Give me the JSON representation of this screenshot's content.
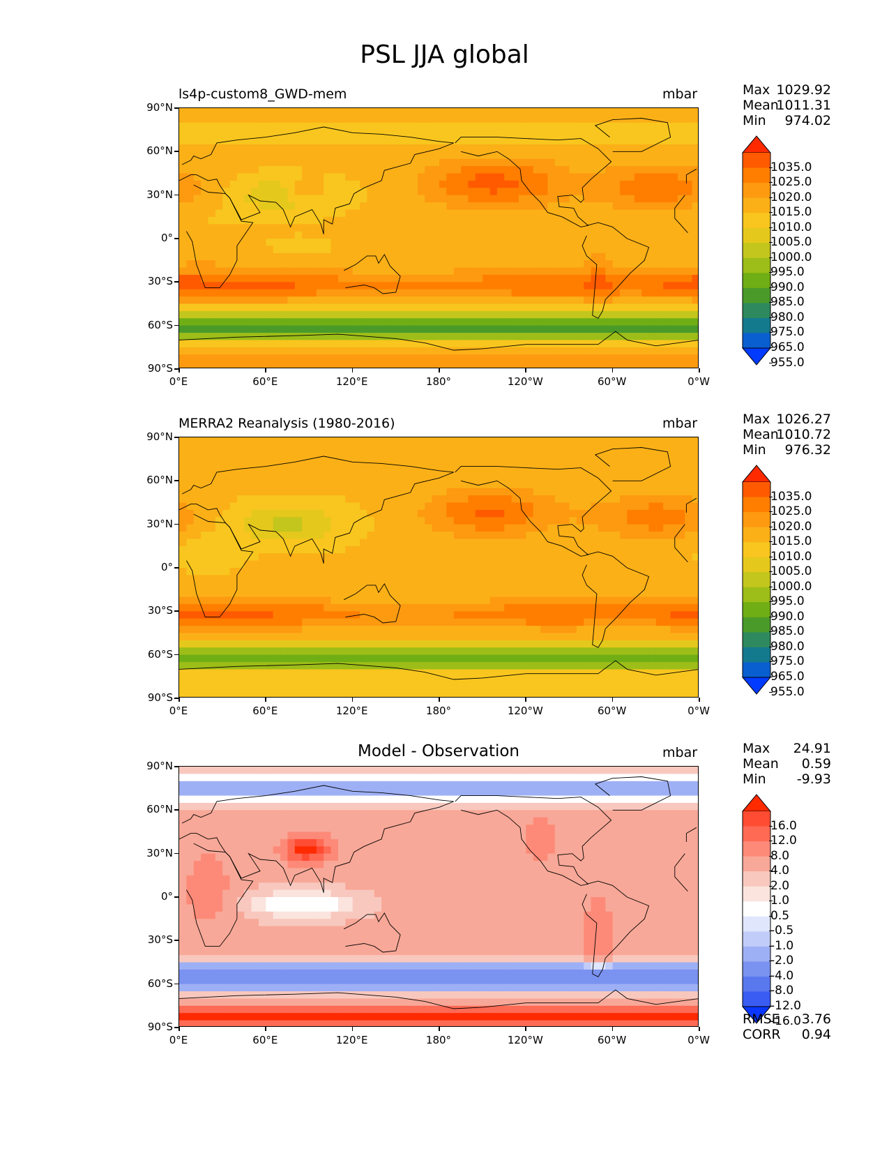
{
  "title": "PSL JJA global",
  "axes": {
    "lat_labels": [
      "90°N",
      "60°N",
      "30°N",
      "0°",
      "30°S",
      "60°S",
      "90°S"
    ],
    "lon_labels": [
      "0°E",
      "60°E",
      "120°E",
      "180°",
      "120°W",
      "60°W",
      "0°W"
    ]
  },
  "abs_levels": [
    "1035.0",
    "1025.0",
    "1020.0",
    "1015.0",
    "1010.0",
    "1005.0",
    "1000.0",
    "995.0",
    "990.0",
    "985.0",
    "980.0",
    "975.0",
    "965.0",
    "955.0"
  ],
  "diff_levels": [
    "16.0",
    "12.0",
    "8.0",
    "4.0",
    "2.0",
    "1.0",
    "0.5",
    "-0.5",
    "-1.0",
    "-2.0",
    "-4.0",
    "-8.0",
    "-12.0",
    "-16.0"
  ],
  "abs_colors": [
    "#ff2a00",
    "#ff5a00",
    "#ff7e00",
    "#fd9a10",
    "#fbb017",
    "#f8c61e",
    "#e5c81c",
    "#c3c61c",
    "#9dbd18",
    "#6fae14",
    "#4a9a2a",
    "#2e8a5e",
    "#137a8e",
    "#0a5fd0",
    "#003bff"
  ],
  "diff_colors": [
    "#ff2a00",
    "#ff4c33",
    "#ff6a55",
    "#fd8a78",
    "#f8a898",
    "#f8c8be",
    "#fbe4de",
    "#ffffff",
    "#e0e6fb",
    "#c2ccf8",
    "#9eb0f5",
    "#7a92f0",
    "#5a78ee",
    "#3a5cf2",
    "#0a36ff"
  ],
  "panels": [
    {
      "name": "test",
      "left_title": "ls4p-custom8_GWD-mem",
      "center_title": "",
      "units": "mbar",
      "stats": [
        {
          "label": "Max",
          "value": "1029.92"
        },
        {
          "label": "Mean",
          "value": "1011.31"
        },
        {
          "label": "Min",
          "value": "974.02"
        }
      ]
    },
    {
      "name": "reference",
      "left_title": "MERRA2 Reanalysis (1980-2016)",
      "center_title": "",
      "units": "mbar",
      "stats": [
        {
          "label": "Max",
          "value": "1026.27"
        },
        {
          "label": "Mean",
          "value": "1010.72"
        },
        {
          "label": "Min",
          "value": "976.32"
        }
      ]
    },
    {
      "name": "difference",
      "left_title": "",
      "center_title": "Model - Observation",
      "units": "mbar",
      "stats": [
        {
          "label": "Max",
          "value": "24.91"
        },
        {
          "label": "Mean",
          "value": "0.59"
        },
        {
          "label": "Min",
          "value": "-9.93"
        }
      ],
      "metrics": [
        {
          "label": "RMSE",
          "value": "3.76"
        },
        {
          "label": "CORR",
          "value": "0.94"
        }
      ]
    }
  ],
  "chart_data": [
    {
      "type": "heatmap",
      "title": "ls4p-custom8_GWD-mem",
      "units": "mbar",
      "xlim": [
        0,
        360
      ],
      "ylim": [
        -90,
        90
      ],
      "colorbar_levels": [
        955,
        965,
        975,
        980,
        985,
        990,
        995,
        1000,
        1005,
        1010,
        1015,
        1020,
        1025,
        1035
      ],
      "stats": {
        "max": 1029.92,
        "mean": 1011.31,
        "min": 974.02
      }
    },
    {
      "type": "heatmap",
      "title": "MERRA2 Reanalysis (1980-2016)",
      "units": "mbar",
      "xlim": [
        0,
        360
      ],
      "ylim": [
        -90,
        90
      ],
      "colorbar_levels": [
        955,
        965,
        975,
        980,
        985,
        990,
        995,
        1000,
        1005,
        1010,
        1015,
        1020,
        1025,
        1035
      ],
      "stats": {
        "max": 1026.27,
        "mean": 1010.72,
        "min": 976.32
      }
    },
    {
      "type": "heatmap",
      "title": "Model - Observation",
      "units": "mbar",
      "xlim": [
        0,
        360
      ],
      "ylim": [
        -90,
        90
      ],
      "colorbar_levels": [
        -16,
        -12,
        -8,
        -4,
        -2,
        -1,
        -0.5,
        0.5,
        1,
        2,
        4,
        8,
        12,
        16
      ],
      "stats": {
        "max": 24.91,
        "mean": 0.59,
        "min": -9.93,
        "rmse": 3.76,
        "corr": 0.94
      }
    }
  ]
}
